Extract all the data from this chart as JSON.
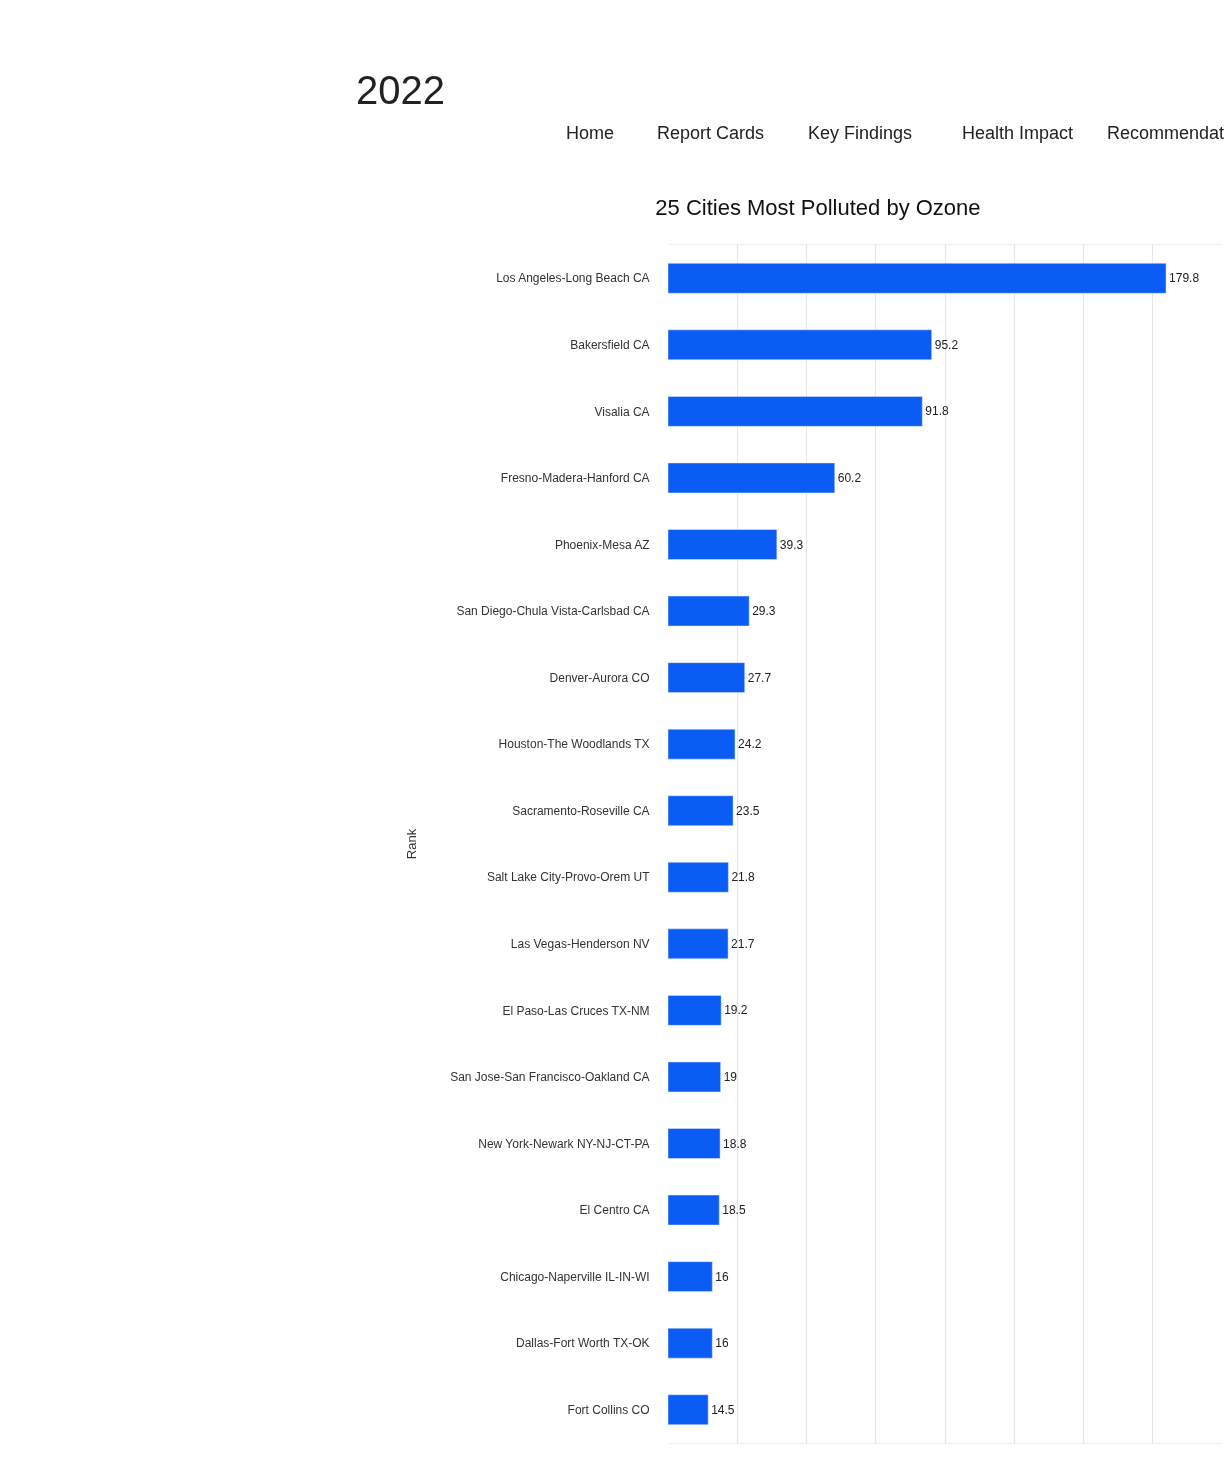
{
  "chart_data": {
    "type": "bar",
    "orientation": "horizontal",
    "title": "25 Cities Most Polluted by Ozone",
    "ylabel": "Rank",
    "categories": [
      "Los Angeles-Long Beach CA",
      "Bakersfield CA",
      "Visalia CA",
      "Fresno-Madera-Hanford CA",
      "Phoenix-Mesa AZ",
      "San Diego-Chula Vista-Carlsbad CA",
      "Denver-Aurora CO",
      "Houston-The Woodlands TX",
      "Sacramento-Roseville CA",
      "Salt Lake City-Provo-Orem UT",
      "Las Vegas-Henderson NV",
      "El Paso-Las Cruces TX-NM",
      "San Jose-San Francisco-Oakland CA",
      "New York-Newark NY-NJ-CT-PA",
      "El Centro CA",
      "Chicago-Naperville IL-IN-WI",
      "Dallas-Fort Worth TX-OK",
      "Fort Collins CO"
    ],
    "values": [
      179.8,
      95.2,
      91.8,
      60.2,
      39.3,
      29.3,
      27.7,
      24.2,
      23.5,
      21.8,
      21.7,
      19.2,
      19,
      18.8,
      18.5,
      16,
      16,
      14.5
    ],
    "color": "#0a5cf5",
    "data_labels": true,
    "grid": "x",
    "legend": false,
    "xlim": [
      0,
      200
    ],
    "xticks": [
      {
        "value": 25,
        "label": null
      },
      {
        "value": 50,
        "label": null
      },
      {
        "value": 75,
        "label": null
      },
      {
        "value": 100,
        "label": null
      },
      {
        "value": 125,
        "label": null
      },
      {
        "value": 150,
        "label": null
      },
      {
        "value": 175,
        "label": null
      }
    ],
    "annotations": [
      "2022",
      "Home",
      "Report Cards",
      "Key Findings",
      "Health Impact",
      "Recommendat"
    ]
  }
}
